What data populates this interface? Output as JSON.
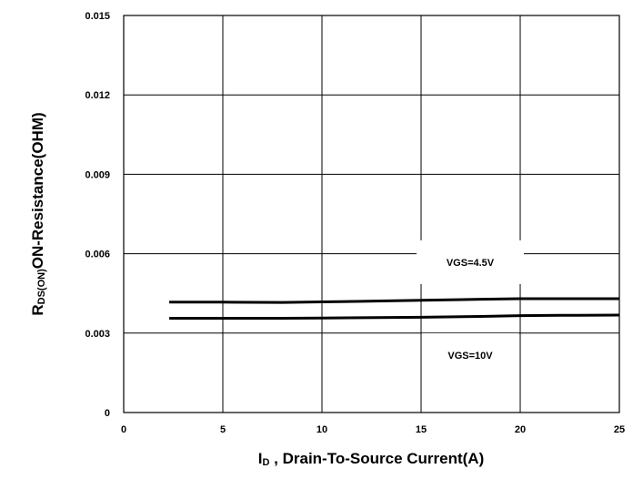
{
  "chart_data": {
    "type": "line",
    "xlabel_main": "I",
    "xlabel_sub": "D",
    "xlabel_rest": " , Drain-To-Source Current(A)",
    "ylabel_main": "R",
    "ylabel_sub": "DS(ON)",
    "ylabel_rest": "ON-Resistance(OHM)",
    "xlim": [
      0,
      25
    ],
    "ylim": [
      0,
      0.015
    ],
    "x_ticks": [
      0,
      5,
      10,
      15,
      20,
      25
    ],
    "x_tick_labels": [
      "0",
      "5",
      "10",
      "15",
      "20",
      "25"
    ],
    "y_ticks": [
      0,
      0.003,
      0.006,
      0.009,
      0.012,
      0.015
    ],
    "y_tick_labels": [
      "0",
      "0.003",
      "0.006",
      "0.009",
      "0.012",
      "0.015"
    ],
    "grid": true,
    "series": [
      {
        "name": "VGS=4.5V",
        "x": [
          2.3,
          5,
          8,
          10,
          12,
          15,
          18,
          20,
          22,
          25
        ],
        "y": [
          0.00417,
          0.00417,
          0.00416,
          0.00418,
          0.0042,
          0.00424,
          0.00428,
          0.0043,
          0.0043,
          0.0043
        ]
      },
      {
        "name": "VGS=10V",
        "x": [
          2.3,
          5,
          8,
          10,
          12,
          15,
          18,
          20,
          22,
          25
        ],
        "y": [
          0.00356,
          0.00356,
          0.00356,
          0.00357,
          0.00358,
          0.0036,
          0.00363,
          0.00366,
          0.00367,
          0.00368
        ]
      }
    ],
    "annotations": [
      "VGS=4.5V",
      "VGS=10V"
    ]
  }
}
